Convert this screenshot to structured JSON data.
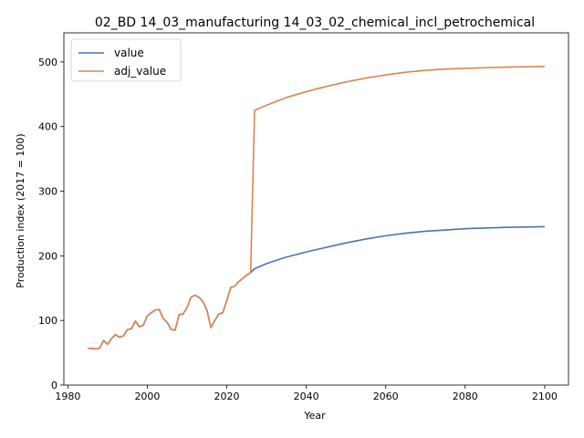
{
  "chart_data": {
    "type": "line",
    "title": "02_BD 14_03_manufacturing 14_03_02_chemical_incl_petrochemical",
    "xlabel": "Year",
    "ylabel": "Production index (2017 = 100)",
    "xlim": [
      1979,
      2106
    ],
    "ylim": [
      0,
      545
    ],
    "xticks": [
      1980,
      2000,
      2020,
      2040,
      2060,
      2080,
      2100
    ],
    "yticks": [
      0,
      100,
      200,
      300,
      400,
      500
    ],
    "grid": false,
    "legend": "top-left",
    "series": [
      {
        "name": "value",
        "color": "#4c72b0",
        "points": [
          [
            1985,
            57
          ],
          [
            1986,
            56.5
          ],
          [
            1987,
            56
          ],
          [
            1988,
            57
          ],
          [
            1989,
            69
          ],
          [
            1990,
            63
          ],
          [
            1991,
            72
          ],
          [
            1992,
            78
          ],
          [
            1993,
            74
          ],
          [
            1994,
            76
          ],
          [
            1995,
            86
          ],
          [
            1996,
            87
          ],
          [
            1997,
            99
          ],
          [
            1998,
            90
          ],
          [
            1999,
            93
          ],
          [
            2000,
            107
          ],
          [
            2001,
            112
          ],
          [
            2002,
            116
          ],
          [
            2003,
            117
          ],
          [
            2004,
            103
          ],
          [
            2005,
            97
          ],
          [
            2006,
            86
          ],
          [
            2007,
            85
          ],
          [
            2008,
            109
          ],
          [
            2009,
            110
          ],
          [
            2010,
            120
          ],
          [
            2011,
            136
          ],
          [
            2012,
            139
          ],
          [
            2013,
            136
          ],
          [
            2014,
            129
          ],
          [
            2015,
            116
          ],
          [
            2016,
            89
          ],
          [
            2017,
            100
          ],
          [
            2018,
            110
          ],
          [
            2019,
            112
          ],
          [
            2020,
            131
          ],
          [
            2021,
            151
          ],
          [
            2022,
            153
          ],
          [
            2023,
            160
          ],
          [
            2024,
            165
          ],
          [
            2025,
            170
          ],
          [
            2026,
            174
          ],
          [
            2027,
            180
          ],
          [
            2030,
            188
          ],
          [
            2035,
            198
          ],
          [
            2040,
            206
          ],
          [
            2045,
            213
          ],
          [
            2050,
            220
          ],
          [
            2055,
            226
          ],
          [
            2060,
            231
          ],
          [
            2065,
            235
          ],
          [
            2070,
            238
          ],
          [
            2075,
            240
          ],
          [
            2080,
            242
          ],
          [
            2085,
            243
          ],
          [
            2090,
            244
          ],
          [
            2095,
            244.5
          ],
          [
            2100,
            245
          ]
        ]
      },
      {
        "name": "adj_value",
        "color": "#dd8452",
        "points": [
          [
            1985,
            57
          ],
          [
            1986,
            56.5
          ],
          [
            1987,
            56
          ],
          [
            1988,
            57
          ],
          [
            1989,
            69
          ],
          [
            1990,
            63
          ],
          [
            1991,
            72
          ],
          [
            1992,
            78
          ],
          [
            1993,
            74
          ],
          [
            1994,
            76
          ],
          [
            1995,
            86
          ],
          [
            1996,
            87
          ],
          [
            1997,
            99
          ],
          [
            1998,
            90
          ],
          [
            1999,
            93
          ],
          [
            2000,
            107
          ],
          [
            2001,
            112
          ],
          [
            2002,
            116
          ],
          [
            2003,
            117
          ],
          [
            2004,
            103
          ],
          [
            2005,
            97
          ],
          [
            2006,
            86
          ],
          [
            2007,
            85
          ],
          [
            2008,
            109
          ],
          [
            2009,
            110
          ],
          [
            2010,
            120
          ],
          [
            2011,
            136
          ],
          [
            2012,
            139
          ],
          [
            2013,
            136
          ],
          [
            2014,
            129
          ],
          [
            2015,
            116
          ],
          [
            2016,
            89
          ],
          [
            2017,
            100
          ],
          [
            2018,
            110
          ],
          [
            2019,
            112
          ],
          [
            2020,
            131
          ],
          [
            2021,
            151
          ],
          [
            2022,
            153
          ],
          [
            2023,
            160
          ],
          [
            2024,
            165
          ],
          [
            2025,
            170
          ],
          [
            2026,
            174
          ],
          [
            2027,
            425
          ],
          [
            2030,
            433
          ],
          [
            2035,
            445
          ],
          [
            2040,
            454
          ],
          [
            2045,
            462
          ],
          [
            2050,
            469
          ],
          [
            2055,
            475
          ],
          [
            2060,
            480
          ],
          [
            2065,
            484
          ],
          [
            2070,
            487
          ],
          [
            2075,
            489
          ],
          [
            2080,
            490
          ],
          [
            2085,
            491
          ],
          [
            2090,
            492
          ],
          [
            2095,
            492.5
          ],
          [
            2100,
            493
          ]
        ]
      }
    ]
  }
}
